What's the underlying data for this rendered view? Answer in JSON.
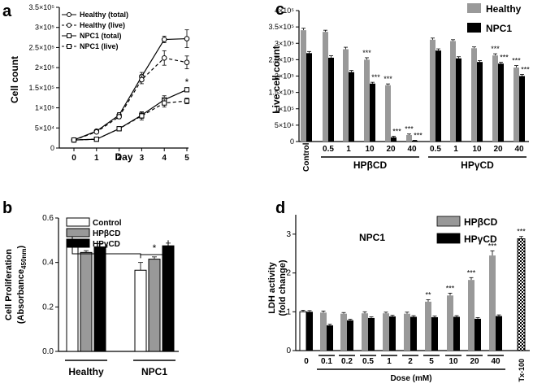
{
  "chart_data": [
    {
      "panel": "a",
      "type": "line",
      "xlabel": "Day",
      "ylabel": "Cell count",
      "x": [
        0,
        1,
        2,
        3,
        4,
        5
      ],
      "xticks": [
        "0",
        "1",
        "2",
        "3",
        "4",
        "5"
      ],
      "ylim": [
        0,
        350000
      ],
      "yticks": [
        {
          "v": 0,
          "t": "0"
        },
        {
          "v": 50000,
          "t": "5×10⁴"
        },
        {
          "v": 100000,
          "t": "1×10⁵"
        },
        {
          "v": 150000,
          "t": "1.5×10⁵"
        },
        {
          "v": 200000,
          "t": "2×10⁵"
        },
        {
          "v": 250000,
          "t": "2.5×10⁵"
        },
        {
          "v": 300000,
          "t": "3×10⁵"
        },
        {
          "v": 350000,
          "t": "3.5×10⁵"
        }
      ],
      "series": [
        {
          "name": "Healthy (total)",
          "marker": "circle",
          "dash": false,
          "values": [
            20000,
            42000,
            82000,
            178000,
            270000,
            272000
          ],
          "err": [
            2000,
            3000,
            6000,
            10000,
            8000,
            22000
          ]
        },
        {
          "name": "Healthy (live)",
          "marker": "circle",
          "dash": true,
          "values": [
            20000,
            40000,
            78000,
            170000,
            224000,
            213000
          ],
          "err": [
            2000,
            3000,
            5000,
            10000,
            18000,
            16000
          ]
        },
        {
          "name": "NPC1 (total)",
          "marker": "square",
          "dash": false,
          "values": [
            20000,
            22000,
            48000,
            82000,
            120000,
            145000
          ],
          "err": [
            2000,
            2000,
            4000,
            8000,
            10000,
            5000
          ]
        },
        {
          "name": "NPC1 (live)",
          "marker": "square",
          "dash": true,
          "values": [
            20000,
            22000,
            48000,
            80000,
            112000,
            117000
          ],
          "err": [
            2000,
            2000,
            4000,
            10000,
            10000,
            7000
          ]
        }
      ],
      "annotations": [
        {
          "text": "*",
          "x": 5,
          "y": 160000
        }
      ]
    },
    {
      "panel": "b",
      "type": "bar",
      "ylabel": "Cell Proliferation",
      "ylabel_line2": "(Absorbance",
      "ylabel_sub": "450nm",
      "ylabel_close": ")",
      "categories": [
        "Healthy",
        "NPC1"
      ],
      "ylim": [
        0,
        0.6
      ],
      "yticks": [
        {
          "v": 0,
          "t": "0.0"
        },
        {
          "v": 0.2,
          "t": "0.2"
        },
        {
          "v": 0.4,
          "t": "0.4"
        },
        {
          "v": 0.6,
          "t": "0.6"
        }
      ],
      "series": [
        {
          "name": "Control",
          "color": "#ffffff",
          "values": [
            0.475,
            0.365
          ],
          "err": [
            0.03,
            0.035
          ]
        },
        {
          "name": "HPβCD",
          "color": "#999999",
          "values": [
            0.445,
            0.415
          ],
          "err": [
            0.008,
            0.01
          ]
        },
        {
          "name": "HPγCD",
          "color": "#000000",
          "values": [
            0.47,
            0.475
          ],
          "err": [
            0.015,
            0.012
          ]
        }
      ],
      "annotations": [
        "*",
        "*"
      ]
    },
    {
      "panel": "c",
      "type": "bar",
      "ylabel": "Live cell count",
      "ylim": [
        0,
        400000
      ],
      "yticks": [
        {
          "v": 0,
          "t": "0"
        },
        {
          "v": 50000,
          "t": "5×10⁴"
        },
        {
          "v": 100000,
          "t": "1×10⁵"
        },
        {
          "v": 150000,
          "t": "1.5×10⁵"
        },
        {
          "v": 200000,
          "t": "2×10⁵"
        },
        {
          "v": 250000,
          "t": "2.5×10⁵"
        },
        {
          "v": 300000,
          "t": "3×10⁵"
        },
        {
          "v": 350000,
          "t": "3.5×10⁵"
        },
        {
          "v": 400000,
          "t": "4×10⁵"
        }
      ],
      "categories": [
        "Control",
        "0.5",
        "1",
        "10",
        "20",
        "40",
        "0.5",
        "1",
        "10",
        "20",
        "40"
      ],
      "groups": [
        {
          "label": "HPβCD",
          "from": 1,
          "to": 5
        },
        {
          "label": "HPγCD",
          "from": 6,
          "to": 10
        }
      ],
      "series": [
        {
          "name": "Healthy",
          "color": "#999999",
          "values": [
            340000,
            335000,
            282000,
            250000,
            172000,
            20000,
            311000,
            307000,
            285000,
            263000,
            226000
          ],
          "err": [
            6000,
            5000,
            6000,
            6000,
            4000,
            3000,
            5000,
            4000,
            4000,
            5000,
            6000
          ]
        },
        {
          "name": "NPC1",
          "color": "#000000",
          "values": [
            270000,
            256000,
            212000,
            177000,
            13000,
            3000,
            278000,
            254000,
            243000,
            238000,
            200000
          ],
          "err": [
            5000,
            6000,
            5000,
            4000,
            3000,
            1000,
            5000,
            5000,
            4000,
            4000,
            5000
          ]
        }
      ],
      "sig": [
        {
          "i": 3,
          "s": 0,
          "t": "***"
        },
        {
          "i": 3,
          "s": 1,
          "t": "***"
        },
        {
          "i": 4,
          "s": 0,
          "t": "***"
        },
        {
          "i": 4,
          "s": 1,
          "t": "***"
        },
        {
          "i": 5,
          "s": 0,
          "t": "***"
        },
        {
          "i": 5,
          "s": 1,
          "t": "***"
        },
        {
          "i": 9,
          "s": 0,
          "t": "***"
        },
        {
          "i": 9,
          "s": 1,
          "t": "***"
        },
        {
          "i": 10,
          "s": 0,
          "t": "***"
        },
        {
          "i": 10,
          "s": 1,
          "t": "***"
        }
      ]
    },
    {
      "panel": "d",
      "type": "bar",
      "title": "NPC1",
      "xlabel": "Dose (mM)",
      "ylabel": "LDH activity",
      "ylabel_line2": "(fold change)",
      "ylim": [
        0,
        3.5
      ],
      "yticks": [
        {
          "v": 0,
          "t": "0"
        },
        {
          "v": 1,
          "t": "1"
        },
        {
          "v": 2,
          "t": "2"
        },
        {
          "v": 3,
          "t": "3"
        }
      ],
      "categories": [
        "0",
        "0.1",
        "0.2",
        "0.5",
        "1",
        "2",
        "5",
        "10",
        "20",
        "40"
      ],
      "series": [
        {
          "name": "HPβCD",
          "color": "#999999",
          "values": [
            1.0,
            0.98,
            0.95,
            0.96,
            0.96,
            0.95,
            1.26,
            1.42,
            1.82,
            2.45
          ],
          "err": [
            0.04,
            0.04,
            0.03,
            0.04,
            0.03,
            0.04,
            0.05,
            0.06,
            0.06,
            0.12
          ]
        },
        {
          "name": "HPγCD",
          "color": "#000000",
          "values": [
            1.0,
            0.65,
            0.78,
            0.84,
            0.88,
            0.87,
            0.86,
            0.87,
            0.82,
            0.89
          ],
          "err": [
            0.03,
            0.03,
            0.03,
            0.03,
            0.03,
            0.03,
            0.03,
            0.03,
            0.03,
            0.03
          ]
        }
      ],
      "extra": {
        "label": "Tx-100",
        "value": 2.88,
        "err": 0.06,
        "sig": "***"
      },
      "sig": [
        {
          "i": 6,
          "t": "**"
        },
        {
          "i": 7,
          "t": "***"
        },
        {
          "i": 8,
          "t": "***"
        },
        {
          "i": 9,
          "t": "***"
        }
      ]
    }
  ]
}
